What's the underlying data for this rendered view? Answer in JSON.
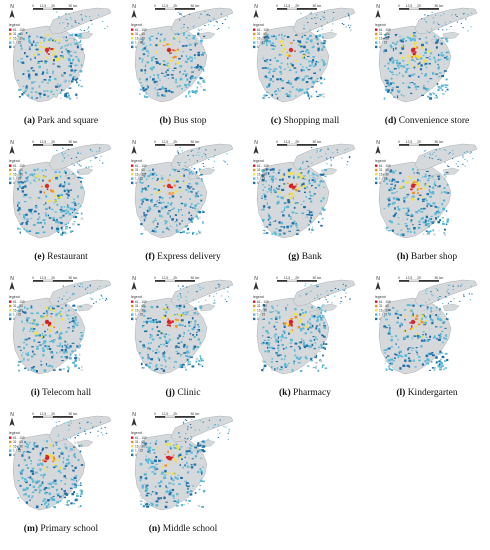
{
  "map_ui": {
    "north_label": "N",
    "legend_title": "legend",
    "legend_items": [
      {
        "label": "61 - 100",
        "color": "#d7191c"
      },
      {
        "label": "31 - 60",
        "color": "#f08a2a"
      },
      {
        "label": "16 - 30",
        "color": "#f2e234"
      },
      {
        "label": "1 - 15",
        "color": "#58b8d6"
      },
      {
        "label": "0",
        "color": "#1f6fa8"
      }
    ],
    "scale_ticks": [
      "0",
      "12.5",
      "25",
      "50 km"
    ]
  },
  "panels": [
    {
      "letter": "(a)",
      "title": "Park and square"
    },
    {
      "letter": "(b)",
      "title": "Bus stop"
    },
    {
      "letter": "(c)",
      "title": "Shopping mall"
    },
    {
      "letter": "(d)",
      "title": "Convenience store"
    },
    {
      "letter": "(e)",
      "title": "Restaurant"
    },
    {
      "letter": "(f)",
      "title": "Express delivery"
    },
    {
      "letter": "(g)",
      "title": "Bank"
    },
    {
      "letter": "(h)",
      "title": "Barber shop"
    },
    {
      "letter": "(i)",
      "title": "Telecom hall"
    },
    {
      "letter": "(j)",
      "title": "Clinic"
    },
    {
      "letter": "(k)",
      "title": "Pharmacy"
    },
    {
      "letter": "(l)",
      "title": "Kindergarten"
    },
    {
      "letter": "(m)",
      "title": "Primary school"
    },
    {
      "letter": "(n)",
      "title": "Middle school"
    }
  ]
}
